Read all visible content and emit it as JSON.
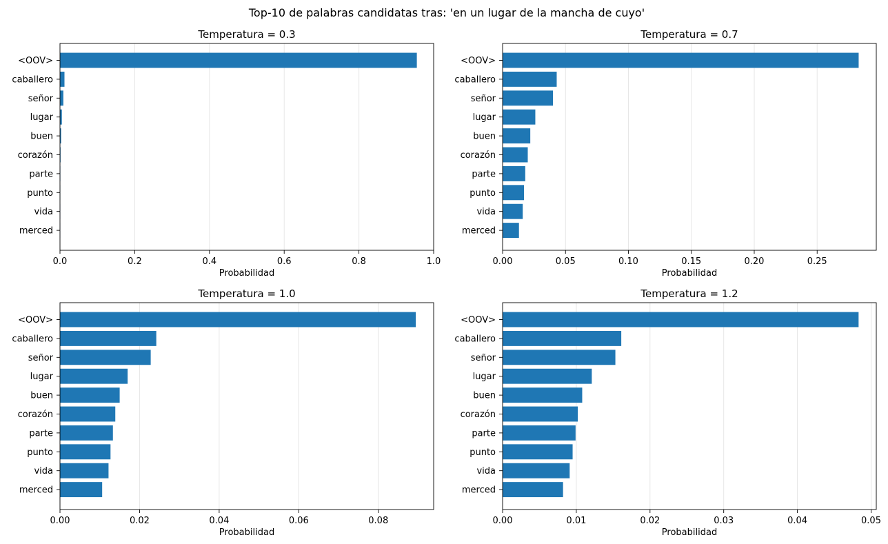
{
  "figure": {
    "suptitle": "Top-10 de palabras candidatas tras: 'en un lugar de la mancha de cuyo'"
  },
  "chart_data": [
    {
      "type": "bar",
      "orientation": "horizontal",
      "title": "Temperatura = 0.3",
      "xlabel": "Probabilidad",
      "ylabel": "",
      "categories": [
        "<OOV>",
        "caballero",
        "señor",
        "lugar",
        "buen",
        "corazón",
        "parte",
        "punto",
        "vida",
        "merced"
      ],
      "values": [
        0.955,
        0.012,
        0.009,
        0.005,
        0.003,
        0.0015,
        0.001,
        0.0008,
        0.0006,
        0.0004
      ],
      "xlim": [
        0,
        1.0
      ],
      "xticks": [
        0.0,
        0.2,
        0.4,
        0.6,
        0.8,
        1.0
      ],
      "xtick_labels": [
        "0.0",
        "0.2",
        "0.4",
        "0.6",
        "0.8",
        "1.0"
      ],
      "grid_x": true,
      "color": "#1f77b4"
    },
    {
      "type": "bar",
      "orientation": "horizontal",
      "title": "Temperatura = 0.7",
      "xlabel": "Probabilidad",
      "ylabel": "",
      "categories": [
        "<OOV>",
        "caballero",
        "señor",
        "lugar",
        "buen",
        "corazón",
        "parte",
        "punto",
        "vida",
        "merced"
      ],
      "values": [
        0.283,
        0.043,
        0.04,
        0.026,
        0.022,
        0.02,
        0.018,
        0.017,
        0.016,
        0.013
      ],
      "xlim": [
        0,
        0.297
      ],
      "xticks": [
        0.0,
        0.05,
        0.1,
        0.15,
        0.2,
        0.25
      ],
      "xtick_labels": [
        "0.00",
        "0.05",
        "0.10",
        "0.15",
        "0.20",
        "0.25"
      ],
      "grid_x": true,
      "color": "#1f77b4"
    },
    {
      "type": "bar",
      "orientation": "horizontal",
      "title": "Temperatura = 1.0",
      "xlabel": "Probabilidad",
      "ylabel": "",
      "categories": [
        "<OOV>",
        "caballero",
        "señor",
        "lugar",
        "buen",
        "corazón",
        "parte",
        "punto",
        "vida",
        "merced"
      ],
      "values": [
        0.0894,
        0.0242,
        0.0228,
        0.017,
        0.015,
        0.0139,
        0.0133,
        0.0127,
        0.0122,
        0.0106
      ],
      "xlim": [
        0,
        0.0939
      ],
      "xticks": [
        0.0,
        0.02,
        0.04,
        0.06,
        0.08
      ],
      "xtick_labels": [
        "0.00",
        "0.02",
        "0.04",
        "0.06",
        "0.08"
      ],
      "grid_x": true,
      "color": "#1f77b4"
    },
    {
      "type": "bar",
      "orientation": "horizontal",
      "title": "Temperatura = 1.2",
      "xlabel": "Probabilidad",
      "ylabel": "",
      "categories": [
        "<OOV>",
        "caballero",
        "señor",
        "lugar",
        "buen",
        "corazón",
        "parte",
        "punto",
        "vida",
        "merced"
      ],
      "values": [
        0.0483,
        0.0161,
        0.0153,
        0.0121,
        0.0108,
        0.0102,
        0.0099,
        0.0095,
        0.0091,
        0.0082
      ],
      "xlim": [
        0,
        0.0507
      ],
      "xticks": [
        0.0,
        0.01,
        0.02,
        0.03,
        0.04,
        0.05
      ],
      "xtick_labels": [
        "0.00",
        "0.01",
        "0.02",
        "0.03",
        "0.04",
        "0.05"
      ],
      "grid_x": true,
      "color": "#1f77b4"
    }
  ]
}
